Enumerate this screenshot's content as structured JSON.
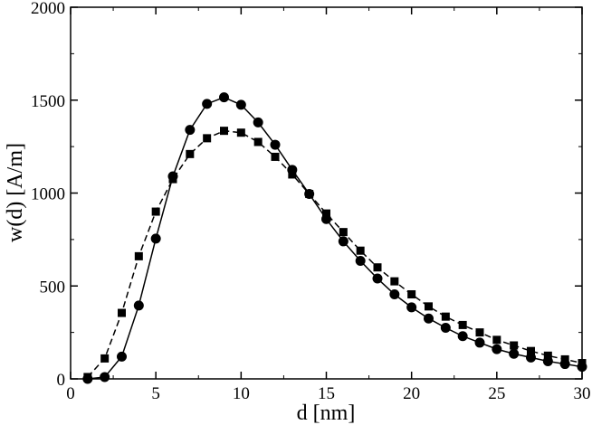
{
  "chart_data": {
    "type": "line",
    "title": "",
    "xlabel": "d [nm]",
    "ylabel": "w(d) [A/m]",
    "xlim": [
      0,
      30
    ],
    "ylim": [
      0,
      2000
    ],
    "x_ticks": [
      "0",
      "5",
      "10",
      "15",
      "20",
      "25",
      "30"
    ],
    "y_ticks": [
      "0",
      "500",
      "1000",
      "1500",
      "2000"
    ],
    "grid": false,
    "legend": "none",
    "x": [
      1,
      2,
      3,
      4,
      5,
      6,
      7,
      8,
      9,
      10,
      11,
      12,
      13,
      14,
      15,
      16,
      17,
      18,
      19,
      20,
      21,
      22,
      23,
      24,
      25,
      26,
      27,
      28,
      29,
      30
    ],
    "series": [
      {
        "marker": "circle",
        "line_style": "solid",
        "color": "#000000",
        "values": [
          0,
          10,
          120,
          395,
          755,
          1090,
          1340,
          1480,
          1515,
          1475,
          1380,
          1260,
          1125,
          995,
          860,
          740,
          635,
          540,
          455,
          385,
          325,
          275,
          230,
          195,
          160,
          135,
          115,
          95,
          80,
          65
        ]
      },
      {
        "marker": "square",
        "line_style": "dashed",
        "color": "#000000",
        "values": [
          10,
          110,
          355,
          660,
          900,
          1075,
          1210,
          1295,
          1335,
          1325,
          1275,
          1195,
          1100,
          995,
          890,
          790,
          690,
          600,
          525,
          455,
          390,
          335,
          290,
          250,
          210,
          180,
          150,
          125,
          105,
          85
        ]
      }
    ]
  }
}
